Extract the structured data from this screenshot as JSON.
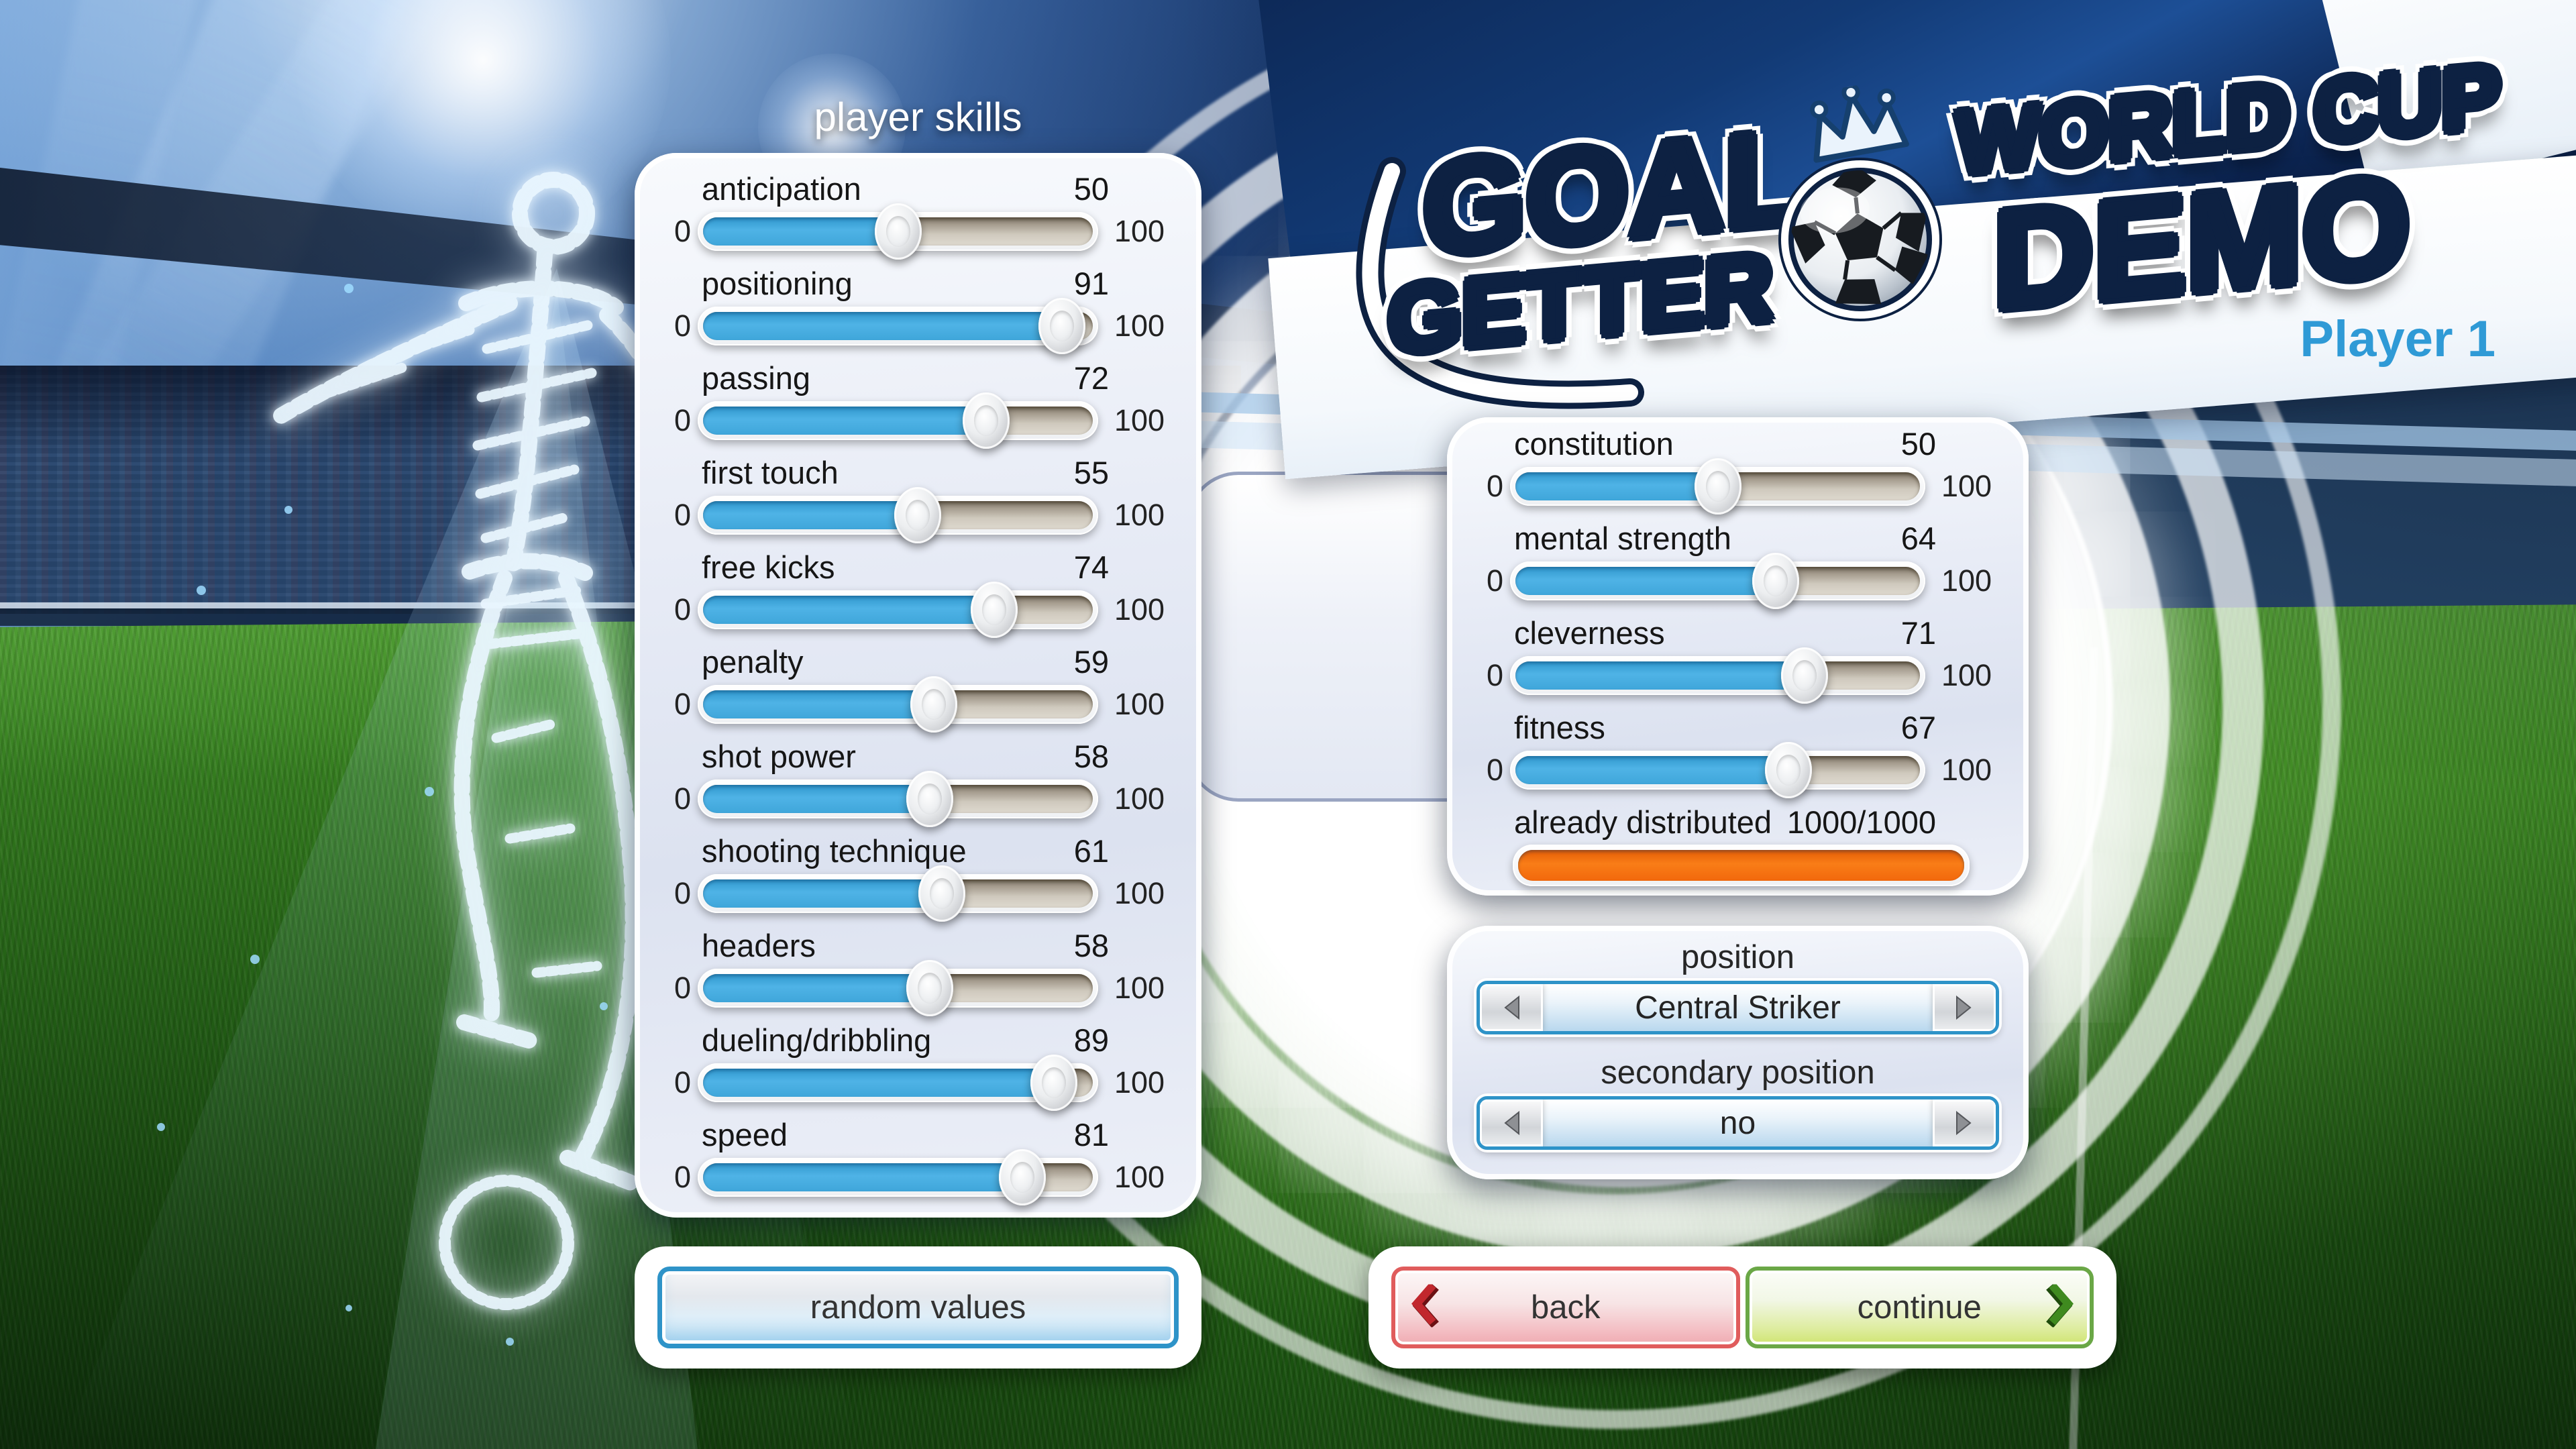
{
  "page": {
    "skills_title": "player skills"
  },
  "branding": {
    "goal": "GOAL",
    "getter": "GETTER",
    "world_cup": "WORLD CUP",
    "demo": "DEMO",
    "player_label": "Player 1",
    "ball_icon": "soccer-ball",
    "crown_icon": "crown"
  },
  "sliders": {
    "min": "0",
    "max": "100"
  },
  "skills": [
    {
      "label": "anticipation",
      "value": 50
    },
    {
      "label": "positioning",
      "value": 91
    },
    {
      "label": "passing",
      "value": 72
    },
    {
      "label": "first touch",
      "value": 55
    },
    {
      "label": "free kicks",
      "value": 74
    },
    {
      "label": "penalty",
      "value": 59
    },
    {
      "label": "shot power",
      "value": 58
    },
    {
      "label": "shooting technique",
      "value": 61
    },
    {
      "label": "headers",
      "value": 58
    },
    {
      "label": "dueling/dribbling",
      "value": 89
    },
    {
      "label": "speed",
      "value": 81
    }
  ],
  "attributes": [
    {
      "label": "constitution",
      "value": 50
    },
    {
      "label": "mental strength",
      "value": 64
    },
    {
      "label": "cleverness",
      "value": 71
    },
    {
      "label": "fitness",
      "value": 67
    }
  ],
  "distribution": {
    "label": "already distributed",
    "value": "1000/1000",
    "percent": 100
  },
  "position": {
    "title": "position",
    "value": "Central Striker",
    "secondary_title": "secondary position",
    "secondary_value": "no"
  },
  "buttons": {
    "random": "random values",
    "back": "back",
    "continue": "continue"
  },
  "colors": {
    "slider_fill": "#44abdf",
    "distributed_bar": "#f2680c",
    "accent_blue": "#2e93c8",
    "back_red": "#e05c5c",
    "continue_green": "#6aa746",
    "player_label_blue": "#2f9ad6"
  }
}
